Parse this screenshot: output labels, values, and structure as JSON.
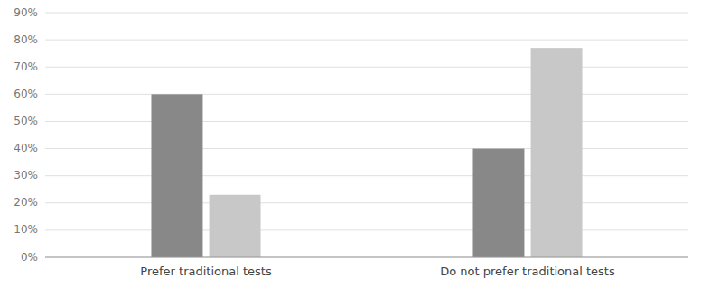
{
  "chart_data": {
    "type": "bar",
    "categories": [
      "Prefer traditional tests",
      "Do not prefer traditional tests"
    ],
    "series": [
      {
        "color": "#888888",
        "values": [
          0.6,
          0.4
        ]
      },
      {
        "color": "#c8c8c8",
        "values": [
          0.23,
          0.77
        ]
      }
    ],
    "ylim": [
      0,
      0.9
    ],
    "yticks": [
      {
        "value": 0.0,
        "label": "0%"
      },
      {
        "value": 0.1,
        "label": "10%"
      },
      {
        "value": 0.2,
        "label": "20%"
      },
      {
        "value": 0.3,
        "label": "30%"
      },
      {
        "value": 0.4,
        "label": "40%"
      },
      {
        "value": 0.5,
        "label": "50%"
      },
      {
        "value": 0.6,
        "label": "60%"
      },
      {
        "value": 0.7,
        "label": "70%"
      },
      {
        "value": 0.8,
        "label": "80%"
      },
      {
        "value": 0.9,
        "label": "90%"
      }
    ],
    "grid": true
  }
}
